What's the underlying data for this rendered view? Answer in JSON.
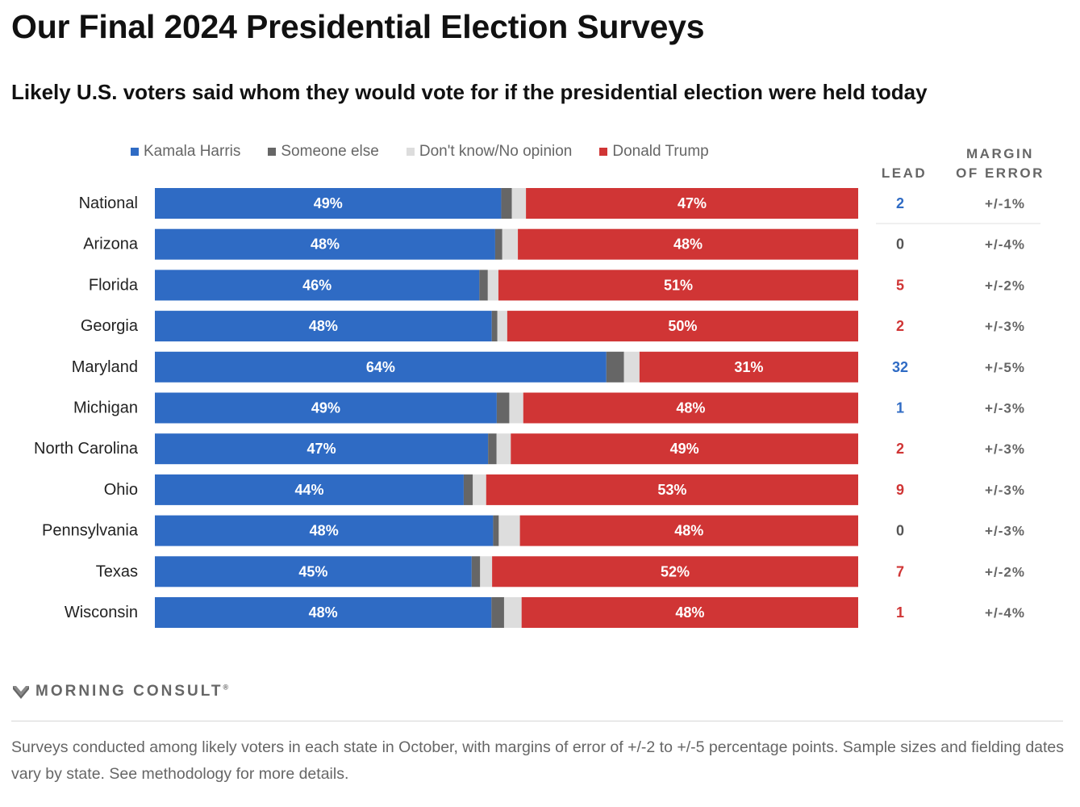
{
  "header": {
    "title": "Our Final 2024 Presidential Election Surveys",
    "subtitle": "Likely U.S. voters said whom they would vote for if the presidential election were held today"
  },
  "legend": [
    {
      "label": "Kamala Harris",
      "color": "#2f6bc4"
    },
    {
      "label": "Someone else",
      "color": "#666666"
    },
    {
      "label": "Don't know/No opinion",
      "color": "#dddddd"
    },
    {
      "label": "Donald Trump",
      "color": "#d03535"
    }
  ],
  "columns": {
    "lead": "LEAD",
    "moe_line1": "MARGIN",
    "moe_line2": "OF ERROR"
  },
  "chart_data": {
    "type": "bar",
    "orientation": "horizontal-stacked-100",
    "categories": [
      "National",
      "Arizona",
      "Florida",
      "Georgia",
      "Maryland",
      "Michigan",
      "North Carolina",
      "Ohio",
      "Pennsylvania",
      "Texas",
      "Wisconsin"
    ],
    "series": [
      {
        "name": "Kamala Harris",
        "color": "#2f6bc4",
        "values": [
          49,
          48,
          46,
          48,
          64,
          49,
          47,
          44,
          48,
          45,
          48
        ]
      },
      {
        "name": "Someone else",
        "color": "#666666",
        "values": [
          1.5,
          1,
          1.2,
          0.8,
          2.5,
          1.8,
          1.2,
          1.3,
          0.8,
          1.2,
          1.8
        ]
      },
      {
        "name": "Don't know/No opinion",
        "color": "#dddddd",
        "values": [
          2,
          2.2,
          1.5,
          1.4,
          2.2,
          2,
          2,
          1.9,
          3,
          1.7,
          2.5
        ]
      },
      {
        "name": "Donald Trump",
        "color": "#d03535",
        "values": [
          47,
          48,
          51,
          50,
          31,
          48,
          49,
          53,
          48,
          52,
          48
        ]
      }
    ],
    "bar_labels": {
      "harris": [
        "49%",
        "48%",
        "46%",
        "48%",
        "64%",
        "49%",
        "47%",
        "44%",
        "48%",
        "45%",
        "48%"
      ],
      "trump": [
        "47%",
        "48%",
        "51%",
        "50%",
        "31%",
        "48%",
        "49%",
        "53%",
        "48%",
        "52%",
        "48%"
      ]
    },
    "lead": [
      {
        "text": "2",
        "party": "harris"
      },
      {
        "text": "0",
        "party": "tie"
      },
      {
        "text": "5",
        "party": "trump"
      },
      {
        "text": "2",
        "party": "trump"
      },
      {
        "text": "32",
        "party": "harris"
      },
      {
        "text": "1",
        "party": "harris"
      },
      {
        "text": "2",
        "party": "trump"
      },
      {
        "text": "9",
        "party": "trump"
      },
      {
        "text": "0",
        "party": "tie"
      },
      {
        "text": "7",
        "party": "trump"
      },
      {
        "text": "1",
        "party": "trump"
      }
    ],
    "margin_of_error": [
      "+/-1%",
      "+/-4%",
      "+/-2%",
      "+/-3%",
      "+/-5%",
      "+/-3%",
      "+/-3%",
      "+/-3%",
      "+/-3%",
      "+/-2%",
      "+/-4%"
    ],
    "lead_colors": {
      "harris": "#2f6bc4",
      "trump": "#d03535",
      "tie": "#555555"
    },
    "legend_position": "top",
    "grid": false
  },
  "footer": {
    "brand": "MORNING CONSULT",
    "brand_mark": "®",
    "note": "Surveys conducted among likely voters in each state in October, with margins of error of +/-2 to +/-5 percentage points. Sample sizes and fielding dates vary by state. See methodology for more details."
  }
}
